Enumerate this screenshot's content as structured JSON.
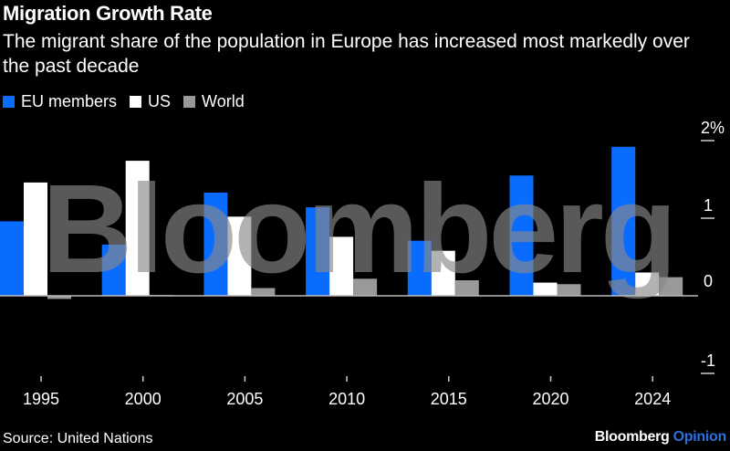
{
  "chart_data": {
    "type": "bar",
    "title": "Migration Growth Rate",
    "subtitle": "The migrant share of the population in Europe has increased most markedly over the past decade",
    "categories": [
      "1995",
      "2000",
      "2005",
      "2010",
      "2015",
      "2020",
      "2024"
    ],
    "series": [
      {
        "name": "EU members",
        "color": "#0a6cff",
        "values": [
          0.96,
          0.66,
          1.33,
          1.14,
          0.71,
          1.55,
          1.92
        ]
      },
      {
        "name": "US",
        "color": "#ffffff",
        "values": [
          1.46,
          1.74,
          1.02,
          0.76,
          0.58,
          0.17,
          0.3
        ]
      },
      {
        "name": "World",
        "color": "#999999",
        "values": [
          -0.04,
          0.01,
          0.1,
          0.22,
          0.2,
          0.15,
          0.24
        ]
      }
    ],
    "ylim": [
      -1,
      2
    ],
    "yticks": [
      {
        "value": 2,
        "label": "2%"
      },
      {
        "value": 1,
        "label": "1"
      },
      {
        "value": 0,
        "label": "0"
      },
      {
        "value": -1,
        "label": "-1"
      }
    ],
    "ylabel": "",
    "xlabel": "",
    "legend_position": "top-left",
    "grid": false
  },
  "watermark": "Bloomberg",
  "source": "Source: United Nations",
  "brand": {
    "name": "Bloomberg",
    "suffix": "Opinion"
  }
}
